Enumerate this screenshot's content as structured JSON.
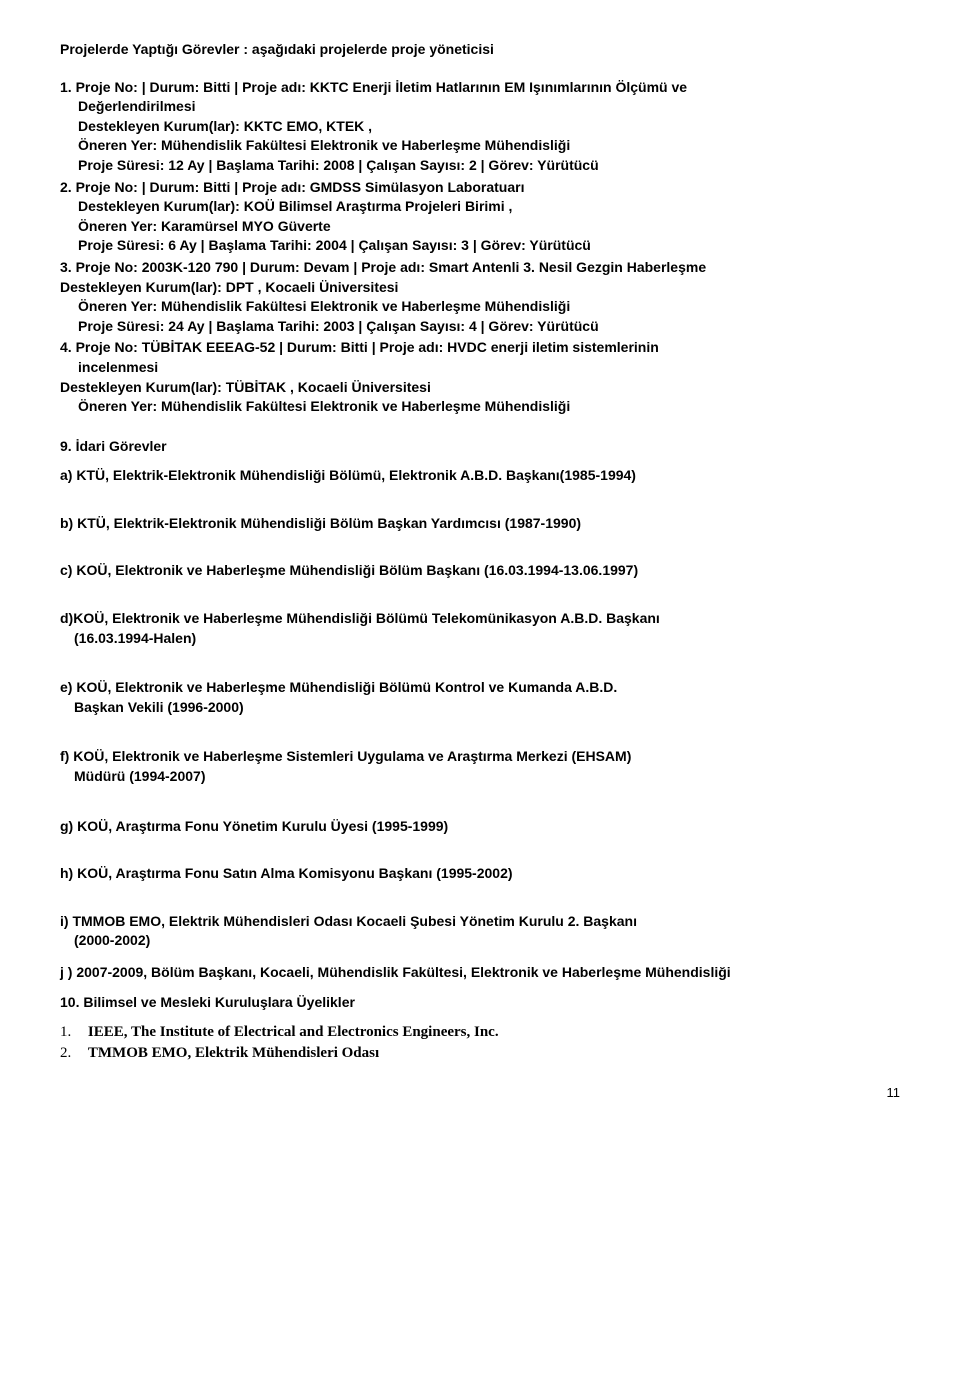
{
  "header": "Projelerde Yaptığı Görevler : aşağıdaki projelerde proje yöneticisi",
  "projects": [
    {
      "num": "1.",
      "line1": "Proje No: | Durum: Bitti | Proje adı: KKTC Enerji İletim Hatlarının EM Işınımlarının Ölçümü ve",
      "line1b": "Değerlendirilmesi",
      "line2": "Destekleyen Kurum(lar): KKTC EMO, KTEK ,",
      "line3": "Öneren Yer: Mühendislik Fakültesi Elektronik ve Haberleşme Mühendisliği",
      "line4": "Proje Süresi: 12 Ay | Başlama Tarihi: 2008 | Çalışan Sayısı: 2 | Görev: Yürütücü"
    },
    {
      "num": "2.",
      "line1": "Proje No: | Durum: Bitti | Proje adı: GMDSS Simülasyon Laboratuarı",
      "line2": "Destekleyen Kurum(lar): KOÜ Bilimsel Araştırma Projeleri Birimi ,",
      "line3": "Öneren Yer: Karamürsel MYO Güverte",
      "line4": "Proje Süresi: 6 Ay | Başlama Tarihi: 2004 | Çalışan Sayısı: 3 | Görev: Yürütücü"
    },
    {
      "num": "3.",
      "line1": "Proje No: 2003K-120 790 | Durum: Devam | Proje adı: Smart Antenli 3. Nesil Gezgin Haberleşme",
      "line2": "Destekleyen Kurum(lar): DPT , Kocaeli Üniversitesi",
      "line3": "Öneren Yer: Mühendislik Fakültesi Elektronik ve Haberleşme Mühendisliği",
      "line4": "Proje Süresi: 24 Ay | Başlama Tarihi: 2003 | Çalışan Sayısı: 4 | Görev: Yürütücü"
    },
    {
      "num": "4.",
      "line1": "Proje No: TÜBİTAK EEEAG-52 | Durum: Bitti | Proje adı: HVDC enerji iletim sistemlerinin",
      "line1b": "incelenmesi",
      "line2": "Destekleyen Kurum(lar): TÜBİTAK , Kocaeli Üniversitesi",
      "line3": "Öneren Yer: Mühendislik Fakültesi Elektronik ve Haberleşme Mühendisliği"
    }
  ],
  "section9": "9.    İdari Görevler",
  "gov": {
    "a": "a) KTÜ, Elektrik-Elektronik Mühendisliği Bölümü, Elektronik A.B.D. Başkanı(1985-1994)",
    "b": "b) KTÜ, Elektrik-Elektronik Mühendisliği Bölüm Başkan Yardımcısı (1987-1990)",
    "c": "c) KOÜ, Elektronik ve Haberleşme Mühendisliği Bölüm Başkanı (16.03.1994-13.06.1997)",
    "d": "d)KOÜ, Elektronik ve Haberleşme Mühendisliği Bölümü Telekomünikasyon A.B.D. Başkanı",
    "d_sub": "(16.03.1994-Halen)",
    "e": "e) KOÜ, Elektronik ve Haberleşme Mühendisliği Bölümü Kontrol ve Kumanda A.B.D.",
    "e_sub": "Başkan Vekili   (1996-2000)",
    "f": "f) KOÜ, Elektronik ve Haberleşme Sistemleri Uygulama ve Araştırma Merkezi (EHSAM)",
    "f_sub": "Müdürü (1994-2007)",
    "g": "g) KOÜ, Araştırma Fonu Yönetim Kurulu Üyesi  (1995-1999)",
    "h": "h) KOÜ, Araştırma Fonu Satın Alma Komisyonu Başkanı (1995-2002)",
    "i": "i) TMMOB EMO, Elektrik Mühendisleri Odası Kocaeli Şubesi Yönetim Kurulu 2. Başkanı",
    "i_sub": "(2000-2002)",
    "j": "j ) 2007-2009, Bölüm Başkanı, Kocaeli, Mühendislik Fakültesi, Elektronik ve Haberleşme Mühendisliği"
  },
  "section10": "10.  Bilimsel ve Mesleki Kuruluşlara Üyelikler",
  "memberships": [
    {
      "num": "1.",
      "text": "IEEE, The Institute of Electrical and Electronics Engineers, Inc."
    },
    {
      "num": "2.",
      "text": "TMMOB EMO, Elektrik Mühendisleri Odası"
    }
  ],
  "page_num": "11"
}
